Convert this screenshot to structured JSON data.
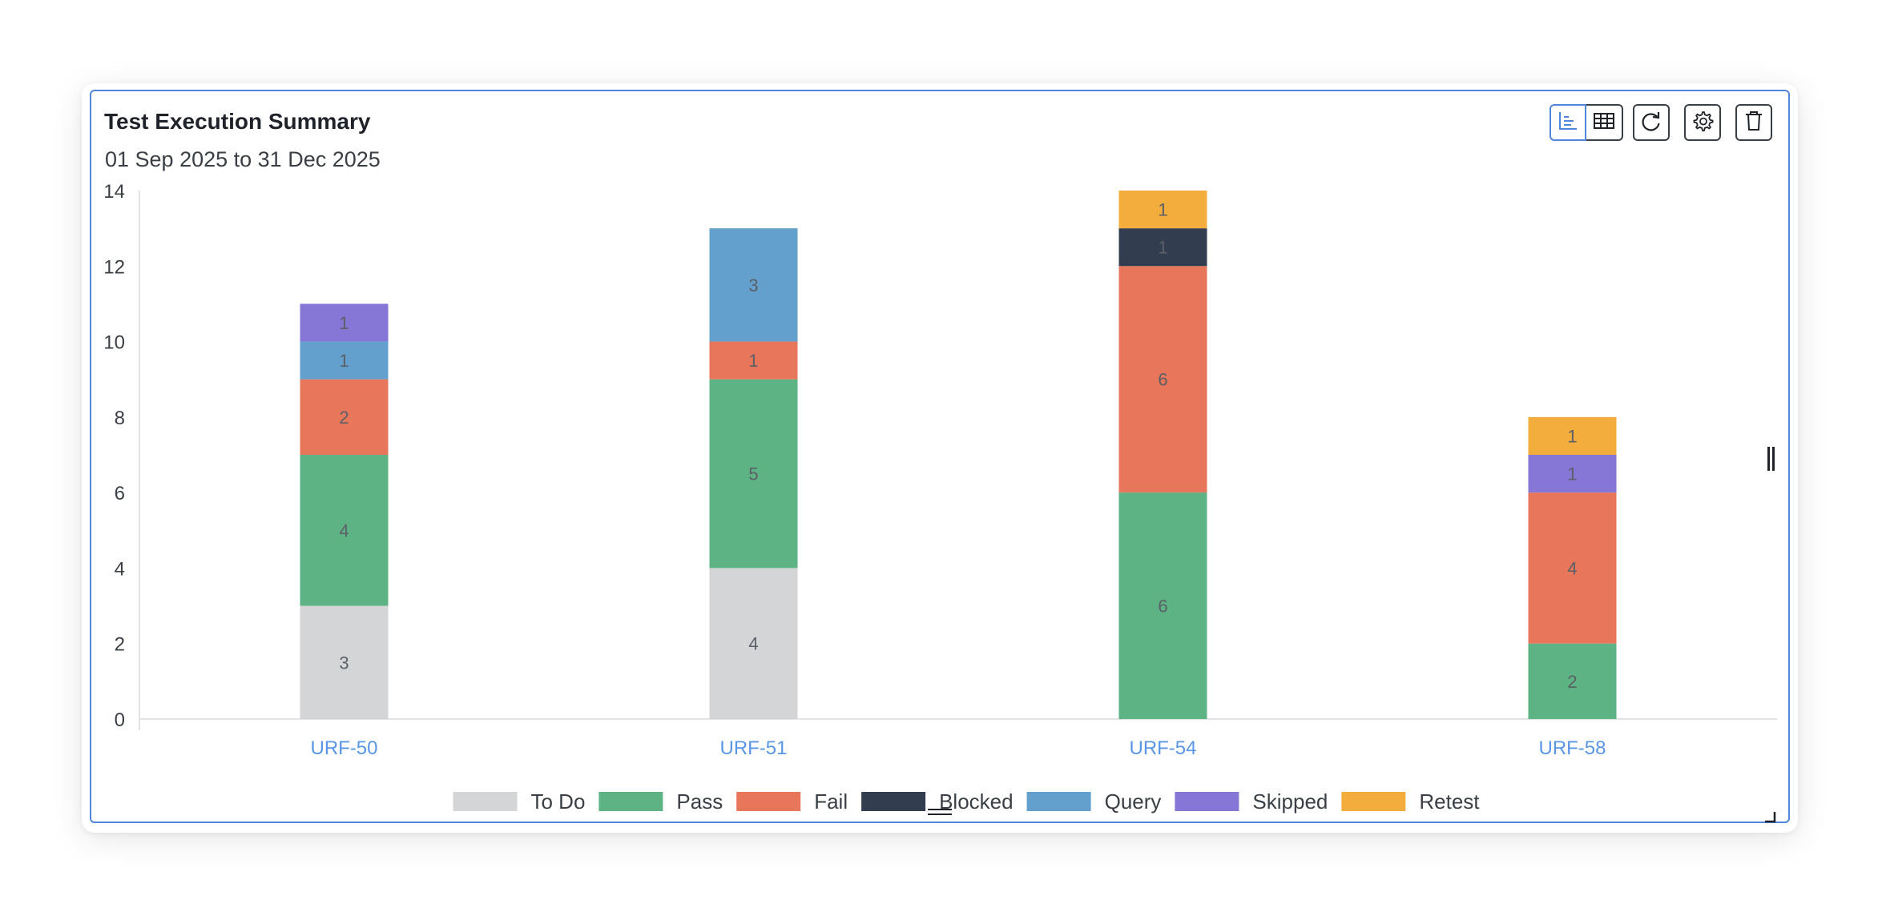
{
  "widget": {
    "title": "Test Execution Summary",
    "subtitle": "01 Sep 2025 to 31 Dec 2025"
  },
  "toolbar": {
    "buttons": [
      {
        "name": "chart-view-button",
        "icon": "bar-chart-icon",
        "active": true
      },
      {
        "name": "table-view-button",
        "icon": "table-icon",
        "active": false
      },
      {
        "name": "refresh-button",
        "icon": "refresh-icon",
        "active": false
      },
      {
        "name": "settings-button",
        "icon": "gear-icon",
        "active": false
      },
      {
        "name": "delete-button",
        "icon": "trash-icon",
        "active": false
      }
    ]
  },
  "chart_data": {
    "type": "bar",
    "stacked": true,
    "categories": [
      "URF-50",
      "URF-51",
      "URF-54",
      "URF-58"
    ],
    "series": [
      {
        "name": "To Do",
        "color": "#d4d5d7",
        "values": [
          3,
          4,
          0,
          0
        ]
      },
      {
        "name": "Pass",
        "color": "#5db383",
        "values": [
          4,
          5,
          6,
          2
        ]
      },
      {
        "name": "Fail",
        "color": "#e8765b",
        "values": [
          2,
          1,
          6,
          4
        ]
      },
      {
        "name": "Blocked",
        "color": "#323d50",
        "values": [
          0,
          0,
          1,
          0
        ]
      },
      {
        "name": "Query",
        "color": "#63a0cd",
        "values": [
          1,
          3,
          0,
          0
        ]
      },
      {
        "name": "Skipped",
        "color": "#8676d6",
        "values": [
          1,
          0,
          0,
          1
        ]
      },
      {
        "name": "Retest",
        "color": "#f2ad3d",
        "values": [
          0,
          0,
          1,
          1
        ]
      }
    ],
    "ylim": [
      0,
      14
    ],
    "yticks": [
      0,
      2,
      4,
      6,
      8,
      10,
      12,
      14
    ],
    "xlabel": "",
    "ylabel": "",
    "grid": false,
    "legend_position": "bottom",
    "category_label_color": "#5a96e6",
    "data_label_color": "#5b5f66"
  }
}
